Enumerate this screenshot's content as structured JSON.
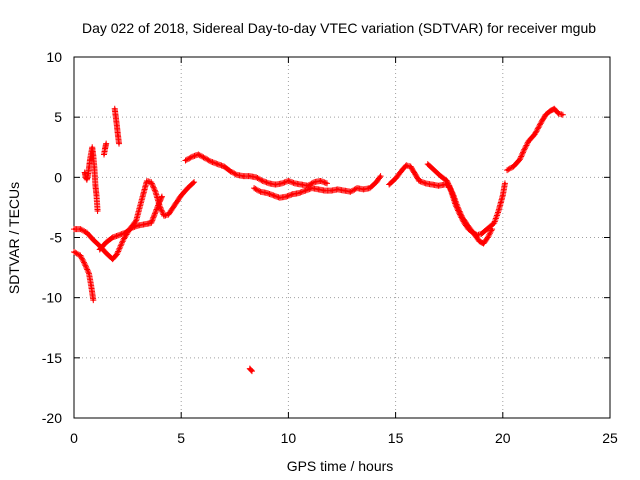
{
  "chart_data": {
    "type": "scatter",
    "title": "Day 022 of 2018, Sidereal Day-to-day VTEC variation (SDTVAR) for receiver mgub",
    "xlabel": "GPS time / hours",
    "ylabel": "SDTVAR / TECUs",
    "xlim": [
      0,
      25
    ],
    "ylim": [
      -20,
      10
    ],
    "xticks": [
      0,
      5,
      10,
      15,
      20,
      25
    ],
    "yticks": [
      -20,
      -15,
      -10,
      -5,
      0,
      5,
      10
    ],
    "xtick_labels": [
      "0",
      "5",
      "10",
      "15",
      "20",
      "25"
    ],
    "ytick_labels": [
      "-20",
      "-15",
      "-10",
      "-5",
      "0",
      "5",
      "10"
    ],
    "grid": true,
    "marker": "+",
    "series": [
      {
        "name": "SDTVAR",
        "color": "#ff0000",
        "segments": [
          [
            [
              0.0,
              -4.3
            ],
            [
              0.3,
              -4.3
            ],
            [
              0.6,
              -4.6
            ],
            [
              0.9,
              -5.2
            ],
            [
              1.2,
              -5.7
            ],
            [
              1.5,
              -6.3
            ],
            [
              1.8,
              -6.8
            ],
            [
              2.0,
              -6.4
            ],
            [
              2.3,
              -5.2
            ],
            [
              2.6,
              -4.3
            ],
            [
              2.9,
              -3.6
            ],
            [
              3.2,
              -1.6
            ],
            [
              3.4,
              -0.3
            ],
            [
              3.6,
              -0.4
            ],
            [
              3.8,
              -1.2
            ],
            [
              4.0,
              -2.4
            ],
            [
              4.2,
              -3.2
            ],
            [
              4.4,
              -3.1
            ],
            [
              4.7,
              -2.3
            ],
            [
              5.0,
              -1.5
            ],
            [
              5.3,
              -0.9
            ],
            [
              5.6,
              -0.4
            ]
          ],
          [
            [
              0.0,
              -6.2
            ],
            [
              0.3,
              -6.5
            ],
            [
              0.5,
              -7.2
            ],
            [
              0.7,
              -8.0
            ],
            [
              0.8,
              -9.0
            ],
            [
              0.9,
              -10.2
            ]
          ],
          [
            [
              0.5,
              0.4
            ],
            [
              0.55,
              0.0
            ],
            [
              0.6,
              -0.2
            ],
            [
              0.65,
              0.2
            ],
            [
              0.7,
              0.8
            ],
            [
              0.75,
              1.5
            ],
            [
              0.8,
              2.0
            ],
            [
              0.85,
              2.5
            ],
            [
              0.9,
              1.8
            ],
            [
              0.95,
              0.8
            ],
            [
              1.0,
              -0.7
            ],
            [
              1.05,
              -1.5
            ],
            [
              1.1,
              -2.8
            ]
          ],
          [
            [
              1.4,
              1.9
            ],
            [
              1.45,
              2.4
            ],
            [
              1.5,
              2.8
            ]
          ],
          [
            [
              1.9,
              5.7
            ],
            [
              1.95,
              5.0
            ],
            [
              2.0,
              4.3
            ],
            [
              2.05,
              3.5
            ],
            [
              2.1,
              2.8
            ]
          ],
          [
            [
              1.2,
              -6.0
            ],
            [
              1.5,
              -5.4
            ],
            [
              1.8,
              -5.0
            ],
            [
              2.1,
              -4.8
            ],
            [
              2.4,
              -4.6
            ],
            [
              2.7,
              -4.2
            ],
            [
              3.0,
              -4.0
            ],
            [
              3.3,
              -3.9
            ],
            [
              3.6,
              -3.8
            ],
            [
              3.8,
              -2.9
            ],
            [
              4.0,
              -2.0
            ],
            [
              4.1,
              -1.6
            ]
          ],
          [
            [
              5.2,
              1.4
            ],
            [
              5.5,
              1.7
            ],
            [
              5.8,
              1.9
            ],
            [
              6.1,
              1.6
            ],
            [
              6.4,
              1.3
            ],
            [
              6.7,
              1.1
            ],
            [
              7.0,
              0.9
            ],
            [
              7.3,
              0.5
            ],
            [
              7.6,
              0.2
            ],
            [
              7.9,
              0.1
            ],
            [
              8.2,
              0.1
            ],
            [
              8.5,
              0.0
            ],
            [
              8.8,
              -0.3
            ],
            [
              9.1,
              -0.5
            ],
            [
              9.4,
              -0.6
            ],
            [
              9.7,
              -0.5
            ],
            [
              10.0,
              -0.3
            ],
            [
              10.3,
              -0.5
            ],
            [
              10.6,
              -0.6
            ],
            [
              10.9,
              -0.7
            ],
            [
              11.2,
              -0.4
            ],
            [
              11.5,
              -0.3
            ],
            [
              11.8,
              -0.5
            ]
          ],
          [
            [
              8.4,
              -0.9
            ],
            [
              8.7,
              -1.2
            ],
            [
              9.0,
              -1.3
            ],
            [
              9.3,
              -1.5
            ],
            [
              9.6,
              -1.7
            ],
            [
              9.9,
              -1.6
            ],
            [
              10.2,
              -1.4
            ],
            [
              10.5,
              -1.3
            ],
            [
              10.8,
              -1.1
            ],
            [
              11.1,
              -0.9
            ],
            [
              11.4,
              -1.0
            ],
            [
              11.7,
              -1.1
            ],
            [
              12.0,
              -1.1
            ],
            [
              12.3,
              -1.0
            ],
            [
              12.6,
              -1.1
            ],
            [
              12.9,
              -1.2
            ],
            [
              13.2,
              -0.9
            ],
            [
              13.5,
              -1.0
            ],
            [
              13.8,
              -0.9
            ],
            [
              14.1,
              -0.4
            ],
            [
              14.3,
              0.1
            ]
          ],
          [
            [
              8.2,
              -15.9
            ],
            [
              8.3,
              -16.1
            ]
          ],
          [
            [
              14.7,
              -0.6
            ],
            [
              15.0,
              -0.1
            ],
            [
              15.3,
              0.6
            ],
            [
              15.5,
              1.0
            ],
            [
              15.7,
              0.9
            ],
            [
              15.9,
              0.3
            ],
            [
              16.1,
              -0.3
            ],
            [
              16.4,
              -0.5
            ],
            [
              16.7,
              -0.6
            ],
            [
              17.0,
              -0.7
            ],
            [
              17.3,
              -0.6
            ],
            [
              17.5,
              -0.7
            ],
            [
              17.7,
              -1.5
            ],
            [
              17.9,
              -2.5
            ],
            [
              18.1,
              -3.3
            ],
            [
              18.4,
              -4.1
            ],
            [
              18.7,
              -4.8
            ],
            [
              18.9,
              -5.3
            ],
            [
              19.1,
              -5.5
            ],
            [
              19.3,
              -5.0
            ],
            [
              19.5,
              -4.3
            ]
          ],
          [
            [
              16.5,
              1.1
            ],
            [
              16.8,
              0.6
            ],
            [
              17.1,
              0.1
            ],
            [
              17.4,
              -0.3
            ],
            [
              17.6,
              -1.2
            ],
            [
              17.8,
              -2.3
            ],
            [
              18.0,
              -3.1
            ],
            [
              18.2,
              -3.8
            ],
            [
              18.4,
              -4.3
            ],
            [
              18.6,
              -4.6
            ],
            [
              18.8,
              -4.8
            ],
            [
              19.0,
              -4.7
            ],
            [
              19.2,
              -4.4
            ],
            [
              19.4,
              -4.1
            ],
            [
              19.6,
              -3.8
            ],
            [
              19.8,
              -2.8
            ],
            [
              20.0,
              -1.5
            ],
            [
              20.1,
              -0.5
            ]
          ],
          [
            [
              20.2,
              0.6
            ],
            [
              20.5,
              0.9
            ],
            [
              20.8,
              1.5
            ],
            [
              21.0,
              2.3
            ],
            [
              21.2,
              3.0
            ],
            [
              21.5,
              3.6
            ],
            [
              21.8,
              4.6
            ],
            [
              22.0,
              5.2
            ],
            [
              22.2,
              5.5
            ],
            [
              22.4,
              5.7
            ],
            [
              22.6,
              5.3
            ],
            [
              22.8,
              5.2
            ]
          ]
        ]
      }
    ]
  }
}
